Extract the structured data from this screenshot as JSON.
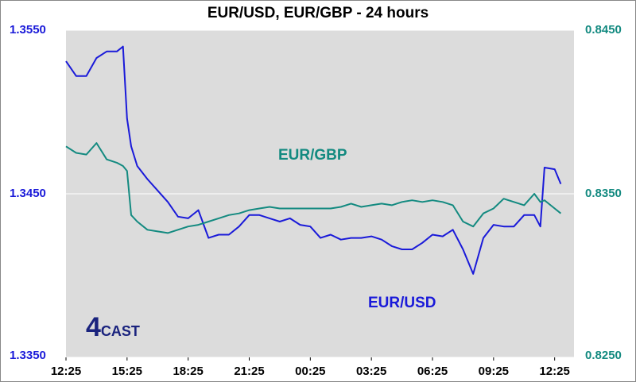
{
  "chart_data": {
    "type": "line",
    "title": "EUR/USD, EUR/GBP - 24 hours",
    "logo": {
      "number": "4",
      "word": "CAST"
    },
    "x": [
      0,
      0.5,
      1,
      1.5,
      2,
      2.5,
      2.8,
      3,
      3.2,
      3.5,
      4,
      4.5,
      5,
      5.5,
      6,
      6.5,
      7,
      7.5,
      8,
      8.5,
      9,
      9.5,
      10,
      10.5,
      11,
      11.5,
      12,
      12.5,
      13,
      13.5,
      14,
      14.5,
      15,
      15.5,
      16,
      16.5,
      17,
      17.5,
      18,
      18.5,
      19,
      19.5,
      20,
      20.5,
      21,
      21.5,
      22,
      22.5,
      23,
      23.3,
      23.5,
      24,
      24.3
    ],
    "xlim": [
      0,
      24.95
    ],
    "xticks": [
      {
        "value": 0,
        "label": "12:25"
      },
      {
        "value": 3,
        "label": "15:25"
      },
      {
        "value": 6,
        "label": "18:25"
      },
      {
        "value": 9,
        "label": "21:25"
      },
      {
        "value": 12,
        "label": "00:25"
      },
      {
        "value": 15,
        "label": "03:25"
      },
      {
        "value": 18,
        "label": "06:25"
      },
      {
        "value": 21,
        "label": "09:25"
      },
      {
        "value": 24,
        "label": "12:25"
      }
    ],
    "ylim": [
      1.335,
      1.355
    ],
    "yticks": [
      {
        "value": 1.335,
        "label": "1.3350"
      },
      {
        "value": 1.345,
        "label": "1.3450"
      },
      {
        "value": 1.355,
        "label": "1.3550"
      }
    ],
    "y2lim": [
      0.825,
      0.845
    ],
    "y2ticks": [
      {
        "value": 0.825,
        "label": "0.8250"
      },
      {
        "value": 0.835,
        "label": "0.8350"
      },
      {
        "value": 0.845,
        "label": "0.8450"
      }
    ],
    "grid": true,
    "series": [
      {
        "name": "EUR/USD",
        "color": "#1a1ad9",
        "axis": "y",
        "values": [
          1.3531,
          1.3522,
          1.3522,
          1.3533,
          1.3537,
          1.3537,
          1.354,
          1.3496,
          1.3479,
          1.3467,
          1.3459,
          1.3452,
          1.3445,
          1.3436,
          1.3435,
          1.344,
          1.3423,
          1.3425,
          1.3425,
          1.343,
          1.3437,
          1.3437,
          1.3435,
          1.3433,
          1.3435,
          1.3431,
          1.343,
          1.3423,
          1.3425,
          1.3422,
          1.3423,
          1.3423,
          1.3424,
          1.3422,
          1.3418,
          1.3416,
          1.3416,
          1.342,
          1.3425,
          1.3424,
          1.3428,
          1.3416,
          1.3401,
          1.3423,
          1.3431,
          1.343,
          1.343,
          1.3437,
          1.3437,
          1.343,
          1.3466,
          1.3465,
          1.3456
        ]
      },
      {
        "name": "EUR/GBP",
        "color": "#138a80",
        "axis": "y2",
        "values": [
          0.8379,
          0.8375,
          0.8374,
          0.8381,
          0.8371,
          0.8369,
          0.8367,
          0.8364,
          0.8337,
          0.8333,
          0.8328,
          0.8327,
          0.8326,
          0.8328,
          0.833,
          0.8331,
          0.8333,
          0.8335,
          0.8337,
          0.8338,
          0.834,
          0.8341,
          0.8342,
          0.8341,
          0.8341,
          0.8341,
          0.8341,
          0.8341,
          0.8341,
          0.8342,
          0.8344,
          0.8342,
          0.8343,
          0.8344,
          0.8343,
          0.8345,
          0.8346,
          0.8345,
          0.8346,
          0.8345,
          0.8343,
          0.8333,
          0.833,
          0.8338,
          0.8341,
          0.8347,
          0.8345,
          0.8343,
          0.835,
          0.8345,
          0.8346,
          0.8341,
          0.8338
        ]
      }
    ]
  }
}
